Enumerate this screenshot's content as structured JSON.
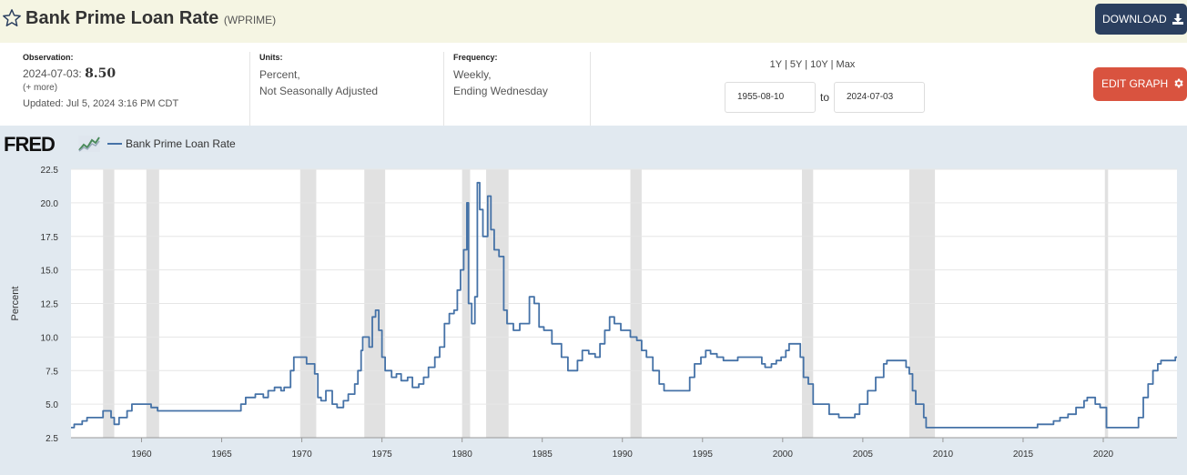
{
  "header": {
    "title": "Bank Prime Loan Rate",
    "series_code": "(WPRIME)",
    "download_label": "DOWNLOAD"
  },
  "meta": {
    "observation_label": "Observation:",
    "observation_date": "2024-07-03:",
    "observation_value": "8.50",
    "more_label": "(+ more)",
    "updated": "Updated: Jul 5, 2024 3:16 PM CDT",
    "units_label": "Units:",
    "units_line1": "Percent,",
    "units_line2": "Not Seasonally Adjusted",
    "frequency_label": "Frequency:",
    "frequency_line1": "Weekly,",
    "frequency_line2": "Ending Wednesday"
  },
  "range_links": [
    "1Y",
    "5Y",
    "10Y",
    "Max"
  ],
  "date_range": {
    "start": "1955-08-10",
    "to_label": "to",
    "end": "2024-07-03"
  },
  "edit_label": "EDIT GRAPH",
  "brand": "FRED",
  "colors": {
    "series": "#4572a7",
    "recession": "#e1e1e1",
    "download_bg": "#2b3f5f",
    "edit_bg": "#d9533f"
  },
  "chart_data": {
    "type": "line",
    "ylabel": "Percent",
    "xlim": [
      1955.6,
      2024.6
    ],
    "ylim": [
      2.5,
      22.5
    ],
    "grid": true,
    "legend": "top-left",
    "y_ticks": [
      "2.5",
      "5.0",
      "7.5",
      "10.0",
      "12.5",
      "15.0",
      "17.5",
      "20.0",
      "22.5"
    ],
    "x_ticks": [
      "1960",
      "1965",
      "1970",
      "1975",
      "1980",
      "1985",
      "1990",
      "1995",
      "2000",
      "2005",
      "2010",
      "2015",
      "2020"
    ],
    "recessions": [
      [
        1957.6,
        1958.3
      ],
      [
        1960.3,
        1961.1
      ],
      [
        1969.9,
        1970.9
      ],
      [
        1973.9,
        1975.2
      ],
      [
        1980.0,
        1980.5
      ],
      [
        1981.5,
        1982.9
      ],
      [
        1990.5,
        1991.2
      ],
      [
        2001.2,
        2001.9
      ],
      [
        2007.9,
        2009.5
      ],
      [
        2020.1,
        2020.3
      ]
    ],
    "series": [
      {
        "name": "Bank Prime Loan Rate",
        "x": [
          1955.6,
          1955.8,
          1956.3,
          1956.6,
          1957.6,
          1958.1,
          1958.3,
          1958.6,
          1959.1,
          1959.4,
          1959.8,
          1960.6,
          1961.0,
          1965.9,
          1966.2,
          1966.5,
          1967.1,
          1967.6,
          1967.9,
          1968.3,
          1968.7,
          1968.9,
          1969.3,
          1969.5,
          1970.3,
          1970.8,
          1971.0,
          1971.2,
          1971.5,
          1971.9,
          1972.2,
          1972.6,
          1972.9,
          1973.3,
          1973.5,
          1973.7,
          1973.8,
          1974.2,
          1974.4,
          1974.6,
          1974.8,
          1975.0,
          1975.2,
          1975.6,
          1975.9,
          1976.2,
          1976.6,
          1976.9,
          1977.3,
          1977.6,
          1977.9,
          1978.3,
          1978.6,
          1978.9,
          1979.2,
          1979.5,
          1979.7,
          1979.9,
          1980.1,
          1980.3,
          1980.4,
          1980.6,
          1980.8,
          1980.95,
          1981.1,
          1981.3,
          1981.6,
          1981.8,
          1982.0,
          1982.3,
          1982.6,
          1982.8,
          1983.2,
          1983.6,
          1984.2,
          1984.5,
          1984.8,
          1985.1,
          1985.6,
          1986.2,
          1986.6,
          1987.2,
          1987.5,
          1987.9,
          1988.3,
          1988.6,
          1988.9,
          1989.2,
          1989.5,
          1989.9,
          1990.5,
          1990.9,
          1991.2,
          1991.5,
          1991.9,
          1992.3,
          1992.6,
          1993.0,
          1994.2,
          1994.5,
          1994.9,
          1995.2,
          1995.5,
          1995.9,
          1996.3,
          1997.2,
          1998.7,
          1998.9,
          1999.3,
          1999.6,
          1999.9,
          2000.2,
          2000.4,
          2000.9,
          2001.1,
          2001.3,
          2001.6,
          2001.9,
          2002.9,
          2003.5,
          2004.5,
          2004.8,
          2005.3,
          2005.8,
          2006.3,
          2006.5,
          2007.7,
          2007.9,
          2008.1,
          2008.3,
          2008.8,
          2008.95,
          2015.9,
          2016.9,
          2017.3,
          2017.8,
          2018.3,
          2018.8,
          2019.0,
          2019.5,
          2019.8,
          2020.2,
          2022.2,
          2022.5,
          2022.8,
          2023.1,
          2023.4,
          2023.6,
          2024.5
        ],
        "values": [
          3.25,
          3.5,
          3.75,
          4.0,
          4.5,
          4.0,
          3.5,
          4.0,
          4.5,
          5.0,
          5.0,
          4.75,
          4.5,
          4.5,
          5.0,
          5.5,
          5.75,
          5.5,
          6.0,
          6.25,
          6.0,
          6.25,
          7.5,
          8.5,
          8.0,
          7.25,
          5.5,
          5.25,
          6.0,
          5.0,
          4.75,
          5.25,
          5.75,
          6.5,
          7.5,
          9.0,
          10.0,
          9.25,
          11.5,
          12.0,
          10.5,
          8.5,
          7.5,
          7.0,
          7.25,
          6.75,
          7.0,
          6.25,
          6.5,
          7.0,
          7.75,
          8.5,
          9.25,
          11.0,
          11.75,
          12.0,
          13.5,
          15.0,
          16.5,
          20.0,
          12.5,
          11.0,
          13.0,
          21.5,
          19.5,
          17.5,
          20.5,
          18.0,
          16.5,
          16.0,
          12.0,
          11.0,
          10.5,
          11.0,
          13.0,
          12.5,
          10.75,
          10.5,
          9.5,
          8.5,
          7.5,
          8.25,
          9.0,
          8.75,
          8.5,
          9.5,
          10.5,
          11.5,
          11.0,
          10.5,
          10.0,
          9.75,
          9.0,
          8.5,
          7.5,
          6.5,
          6.0,
          6.0,
          7.0,
          8.0,
          8.5,
          9.0,
          8.75,
          8.5,
          8.25,
          8.5,
          8.0,
          7.75,
          8.0,
          8.25,
          8.5,
          9.0,
          9.5,
          9.5,
          8.5,
          7.0,
          6.5,
          5.0,
          4.25,
          4.0,
          4.25,
          5.0,
          6.0,
          7.0,
          8.0,
          8.25,
          7.75,
          7.25,
          6.0,
          5.0,
          4.0,
          3.25,
          3.5,
          3.75,
          4.0,
          4.25,
          4.75,
          5.25,
          5.5,
          5.0,
          4.75,
          3.25,
          4.0,
          5.5,
          6.5,
          7.5,
          8.0,
          8.25,
          8.5
        ]
      }
    ]
  }
}
